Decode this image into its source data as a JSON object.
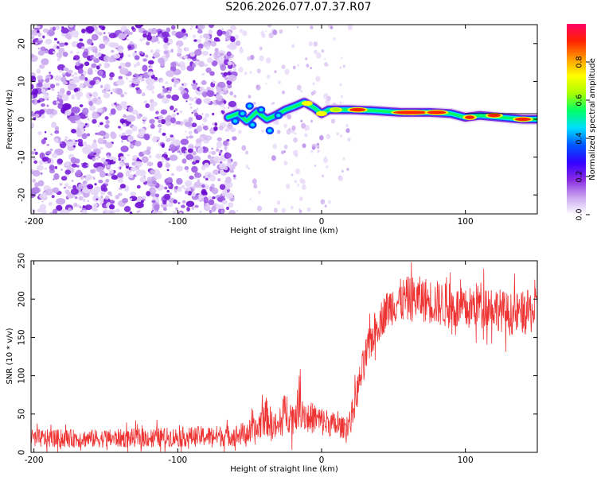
{
  "page": {
    "title": "S206.2026.077.07.37.R07"
  },
  "chart_data": [
    {
      "type": "heatmap",
      "xlabel": "Height of straight line (km)",
      "ylabel": "Frequency (Hz)",
      "xlim": [
        -202,
        150
      ],
      "ylim": [
        -25,
        25
      ],
      "x_ticks": [
        -200,
        -100,
        0,
        100
      ],
      "y_ticks": [
        -20,
        -10,
        0,
        10,
        20
      ],
      "colorbar": {
        "label": "Normalized spectral amplitude",
        "range": [
          0,
          1
        ],
        "ticks": [
          0.0,
          0.2,
          0.4,
          0.6,
          0.8
        ],
        "colors": [
          "#ffffff",
          "#c9a6f0",
          "#8a2be2",
          "#3300ff",
          "#0055ff",
          "#00ddff",
          "#00ff66",
          "#aaff00",
          "#ffff00",
          "#ff9900",
          "#ff2200",
          "#ff0066"
        ]
      },
      "signal_trace": [
        {
          "x": -65,
          "y": 0.5
        },
        {
          "x": -58,
          "y": 1.5
        },
        {
          "x": -52,
          "y": -0.5
        },
        {
          "x": -45,
          "y": 2.0
        },
        {
          "x": -38,
          "y": 0.0
        },
        {
          "x": -32,
          "y": 1.0
        },
        {
          "x": -25,
          "y": 2.5
        },
        {
          "x": -18,
          "y": 3.5
        },
        {
          "x": -12,
          "y": 4.5
        },
        {
          "x": -5,
          "y": 3.0
        },
        {
          "x": 0,
          "y": 1.5
        },
        {
          "x": 5,
          "y": 2.5
        },
        {
          "x": 10,
          "y": 2.5
        },
        {
          "x": 20,
          "y": 2.5
        },
        {
          "x": 35,
          "y": 2.3
        },
        {
          "x": 55,
          "y": 1.8
        },
        {
          "x": 75,
          "y": 1.8
        },
        {
          "x": 90,
          "y": 1.5
        },
        {
          "x": 100,
          "y": 0.5
        },
        {
          "x": 110,
          "y": 1.0
        },
        {
          "x": 125,
          "y": 0.5
        },
        {
          "x": 140,
          "y": 0.0
        },
        {
          "x": 150,
          "y": 0.0
        }
      ],
      "noise_region": {
        "x_range": [
          -202,
          -60
        ],
        "sparse_x_range": [
          -60,
          20
        ]
      }
    },
    {
      "type": "line",
      "xlabel": "Height of straight line (km)",
      "ylabel": "SNR (10 * v/v)",
      "xlim": [
        -202,
        150
      ],
      "ylim": [
        0,
        250
      ],
      "x_ticks": [
        -200,
        -100,
        0,
        100
      ],
      "y_ticks": [
        0,
        50,
        100,
        150,
        200,
        250
      ],
      "series": [
        {
          "name": "SNR",
          "color": "#ee3333",
          "envelope": {
            "x": [
              -202,
              -150,
              -100,
              -60,
              -45,
              -40,
              -35,
              -30,
              -25,
              -20,
              -15,
              -10,
              -5,
              0,
              5,
              10,
              15,
              20,
              25,
              30,
              35,
              40,
              45,
              50,
              60,
              70,
              80,
              90,
              100,
              110,
              120,
              130,
              140,
              150
            ],
            "mean": [
              18,
              18,
              20,
              22,
              28,
              50,
              38,
              30,
              55,
              45,
              62,
              45,
              45,
              40,
              38,
              35,
              32,
              40,
              80,
              120,
              150,
              170,
              185,
              195,
              200,
              200,
              195,
              190,
              185,
              195,
              190,
              180,
              182,
              185
            ],
            "amp": [
              12,
              12,
              13,
              14,
              18,
              28,
              20,
              18,
              28,
              22,
              28,
              22,
              20,
              20,
              18,
              16,
              14,
              18,
              22,
              25,
              25,
              25,
              25,
              28,
              30,
              30,
              30,
              30,
              28,
              30,
              28,
              28,
              28,
              30
            ]
          },
          "samples": 1400
        }
      ]
    }
  ]
}
